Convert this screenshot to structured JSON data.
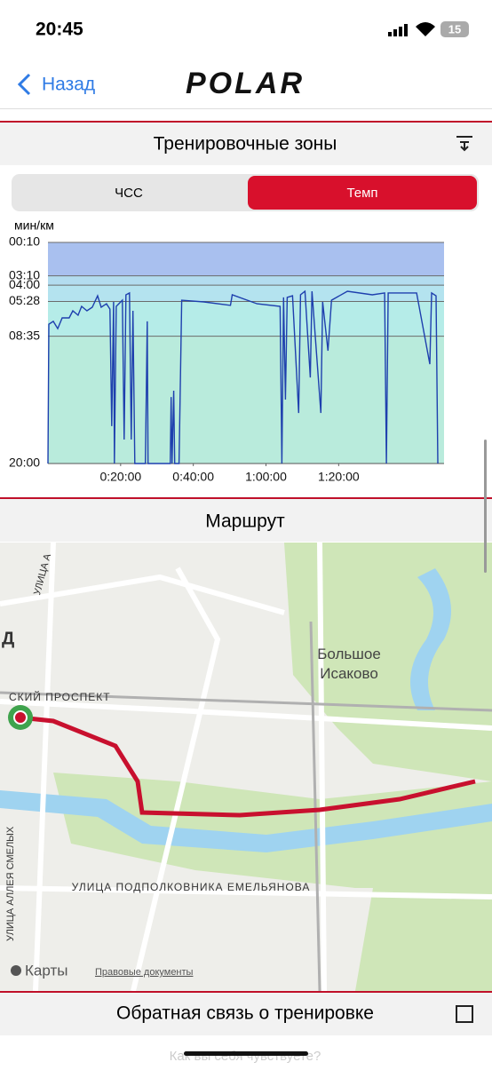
{
  "status_bar": {
    "time": "20:45",
    "battery": "15"
  },
  "nav": {
    "back": "Назад",
    "logo": "POLAR"
  },
  "zones_section": {
    "title": "Тренировочные зоны",
    "tabs": [
      "ЧСС",
      "Темп"
    ]
  },
  "chart_data": {
    "type": "line",
    "y_label": "мин/км",
    "color": "#1e3fae",
    "ylim": [
      1200,
      10
    ],
    "yticks": [
      {
        "value": 10,
        "label": "00:10"
      },
      {
        "value": 190,
        "label": "03:10"
      },
      {
        "value": 240,
        "label": "04:00"
      },
      {
        "value": 328,
        "label": "05:28"
      },
      {
        "value": 515,
        "label": "08:35"
      },
      {
        "value": 1200,
        "label": "20:00"
      }
    ],
    "zone_colors": [
      "#a9c0ef",
      "#b3dcef",
      "#b4e3ef",
      "#b5ece8",
      "#b9ebdc"
    ],
    "xlim": [
      0,
      6540
    ],
    "xticks": [
      {
        "value": 1200,
        "label": "0:20:00"
      },
      {
        "value": 2400,
        "label": "0:40:00"
      },
      {
        "value": 3600,
        "label": "1:00:00"
      },
      {
        "value": 4800,
        "label": "1:20:00"
      }
    ],
    "x": [
      0,
      15,
      88,
      161,
      234,
      351,
      410,
      497,
      556,
      644,
      732,
      819,
      878,
      966,
      1024,
      1053,
      1083,
      1097,
      1127,
      1229,
      1258,
      1287,
      1346,
      1375,
      1404,
      1434,
      1609,
      1639,
      1653,
      2019,
      2034,
      2048,
      2077,
      2092,
      2165,
      2209,
      2575,
      3014,
      3043,
      3453,
      3833,
      3862,
      3891,
      3921,
      3950,
      4038,
      4140,
      4170,
      4243,
      4331,
      4360,
      4506,
      4535,
      4623,
      4682,
      4945,
      5355,
      5559,
      5589,
      5618,
      6087,
      6306,
      6335,
      6408,
      6437
    ],
    "values": [
      1200,
      450,
      435,
      474,
      416,
      416,
      378,
      402,
      354,
      378,
      359,
      297,
      359,
      340,
      369,
      999,
      330,
      1200,
      354,
      321,
      1071,
      292,
      282,
      1071,
      378,
      1200,
      1200,
      435,
      1200,
      1200,
      842,
      1200,
      808,
      1200,
      1200,
      321,
      330,
      349,
      292,
      340,
      354,
      1200,
      306,
      856,
      306,
      297,
      928,
      292,
      273,
      737,
      273,
      928,
      330,
      593,
      321,
      273,
      292,
      282,
      1200,
      282,
      282,
      665,
      282,
      297,
      1200
    ]
  },
  "route_section": {
    "title": "Маршрут"
  },
  "map": {
    "labels": [
      "Большое\nИсаково",
      "УЛИЦА ПОДПОЛКОВНИКА ЕМЕЛЬЯНОВА",
      "СКИЙ ПРОСПЕКТ",
      "УЛИЦА АЛЛЕЯ СМЕЛЫХ",
      "УЛИЦА А",
      "Д"
    ],
    "brand": "Карты",
    "legal": "Правовые документы"
  },
  "feedback": {
    "title": "Обратная связь о тренировке",
    "hint": "Как вы себя чувствуете?"
  }
}
